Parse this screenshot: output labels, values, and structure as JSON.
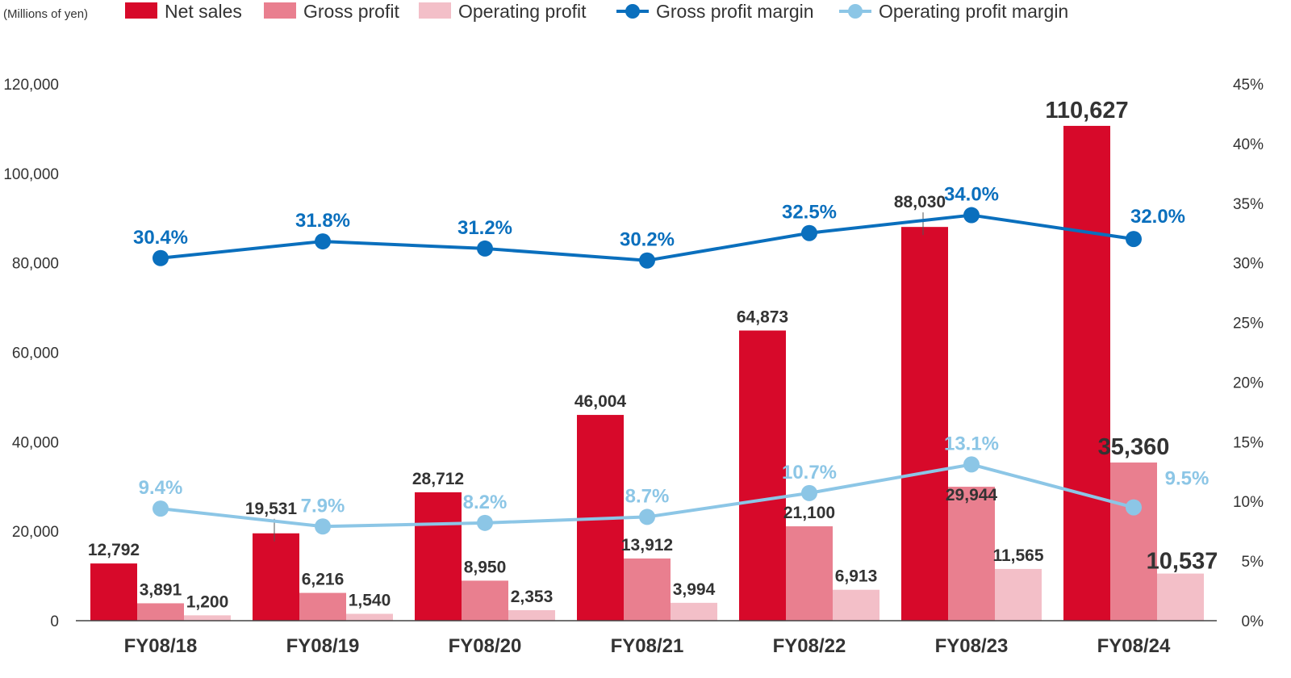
{
  "chart_data": {
    "type": "bar",
    "unit_label": "(Millions of yen)",
    "categories": [
      "FY08/18",
      "FY08/19",
      "FY08/20",
      "FY08/21",
      "FY08/22",
      "FY08/23",
      "FY08/24"
    ],
    "series": [
      {
        "name": "Net sales",
        "kind": "bar",
        "axis": "left",
        "color": "#d7092a",
        "values": [
          12792,
          19531,
          28712,
          46004,
          64873,
          88030,
          110627
        ],
        "labels": [
          "12,792",
          "19,531",
          "28,712",
          "46,004",
          "64,873",
          "88,030",
          "110,627"
        ]
      },
      {
        "name": "Gross profit",
        "kind": "bar",
        "axis": "left",
        "color": "#e97f8f",
        "values": [
          3891,
          6216,
          8950,
          13912,
          21100,
          29944,
          35360
        ],
        "labels": [
          "3,891",
          "6,216",
          "8,950",
          "13,912",
          "21,100",
          "29,944",
          "35,360"
        ]
      },
      {
        "name": "Operating profit",
        "kind": "bar",
        "axis": "left",
        "color": "#f3bfc8",
        "values": [
          1200,
          1540,
          2353,
          3994,
          6913,
          11565,
          10537
        ],
        "labels": [
          "1,200",
          "1,540",
          "2,353",
          "3,994",
          "6,913",
          "11,565",
          "10,537"
        ]
      },
      {
        "name": "Gross profit margin",
        "kind": "line",
        "axis": "right",
        "color": "#0a6fbd",
        "values": [
          30.4,
          31.8,
          31.2,
          30.2,
          32.5,
          34.0,
          32.0
        ],
        "labels": [
          "30.4%",
          "31.8%",
          "31.2%",
          "30.2%",
          "32.5%",
          "34.0%",
          "32.0%"
        ]
      },
      {
        "name": "Operating profit margin",
        "kind": "line",
        "axis": "right",
        "color": "#8cc6e6",
        "values": [
          9.4,
          7.9,
          8.2,
          8.7,
          10.7,
          13.1,
          9.5
        ],
        "labels": [
          "9.4%",
          "7.9%",
          "8.2%",
          "8.7%",
          "10.7%",
          "13.1%",
          "9.5%"
        ]
      }
    ],
    "y_left": {
      "range": [
        0,
        120000
      ],
      "ticks": [
        "0",
        "20,000",
        "40,000",
        "60,000",
        "80,000",
        "100,000",
        "120,000"
      ]
    },
    "y_right": {
      "range": [
        0,
        45
      ],
      "ticks": [
        "0%",
        "5%",
        "10%",
        "15%",
        "20%",
        "25%",
        "30%",
        "35%",
        "40%",
        "45%"
      ]
    },
    "grid": false,
    "legend_position": "top"
  }
}
